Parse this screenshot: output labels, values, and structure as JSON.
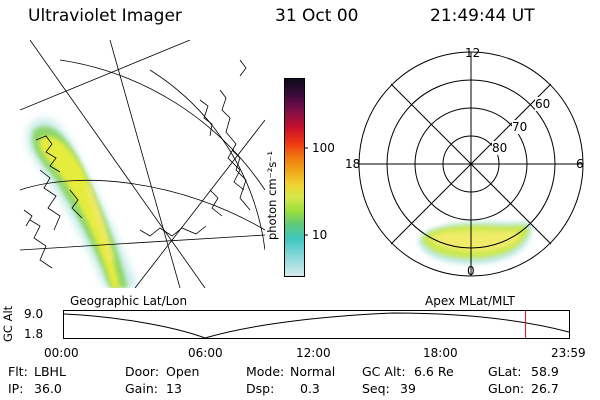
{
  "header": {
    "instrument": "Ultraviolet Imager",
    "date": "31 Oct 00",
    "time": "21:49:44 UT"
  },
  "map_left": {
    "caption": "Geographic Lat/Lon"
  },
  "map_right": {
    "caption": "Apex MLat/MLT",
    "mlt_labels": [
      "12",
      "18",
      "6",
      "0"
    ],
    "mlat_labels": [
      "60",
      "70",
      "80"
    ]
  },
  "colorbar": {
    "unit_label": "photon cm⁻²s⁻¹",
    "tick_labels": [
      "100",
      "10"
    ],
    "colors": [
      "#0d0a1a",
      "#3a0b3a",
      "#7a0e4a",
      "#c8102a",
      "#ee3a12",
      "#f07a10",
      "#f0a818",
      "#f0d030",
      "#d6e84a",
      "#9ade3a",
      "#5cc87c",
      "#3ec6c0",
      "#8ad8da",
      "#d7ecee"
    ]
  },
  "altitude_plot": {
    "ylabel": "GC Alt",
    "y_ticks": [
      "9.0",
      "1.8"
    ],
    "x_ticks": [
      "00:00",
      "06:00",
      "12:00",
      "18:00",
      "23:59"
    ],
    "current_time_fraction": 0.914
  },
  "info": {
    "filter_label": "Flt:",
    "filter_value": "LBHL",
    "ip_label": "IP:",
    "ip_value": "36.0",
    "door_label": "Door:",
    "door_value": "Open",
    "gain_label": "Gain:",
    "gain_value": "13",
    "mode_label": "Mode:",
    "mode_value": "Normal",
    "dsp_label": "Dsp:",
    "dsp_value": "0.3",
    "gcalt_label": "GC Alt:",
    "gcalt_value": "6.6 Re",
    "seq_label": "Seq:",
    "seq_value": "39",
    "glat_label": "GLat:",
    "glat_value": "58.9",
    "glon_label": "GLon:",
    "glon_value": "26.7"
  }
}
